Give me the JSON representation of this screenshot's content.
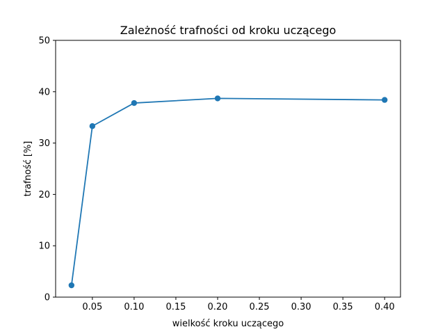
{
  "chart_data": {
    "type": "line",
    "title": "Zależność trafności od kroku uczącego",
    "xlabel": "wielkość kroku uczącego",
    "ylabel": "trafność [%]",
    "xlim": [
      0.006,
      0.419
    ],
    "ylim": [
      0,
      50
    ],
    "xticks": [
      0.05,
      0.1,
      0.15,
      0.2,
      0.25,
      0.3,
      0.35,
      0.4
    ],
    "xtick_labels": [
      "0.05",
      "0.10",
      "0.15",
      "0.20",
      "0.25",
      "0.30",
      "0.35",
      "0.40"
    ],
    "yticks": [
      0,
      10,
      20,
      30,
      40,
      50
    ],
    "ytick_labels": [
      "0",
      "10",
      "20",
      "30",
      "40",
      "50"
    ],
    "grid": false,
    "series": [
      {
        "color": "#1f77b4",
        "marker": "circle",
        "x": [
          0.025,
          0.05,
          0.1,
          0.2,
          0.4
        ],
        "y": [
          2.3,
          33.3,
          37.8,
          38.7,
          38.4
        ]
      }
    ]
  }
}
